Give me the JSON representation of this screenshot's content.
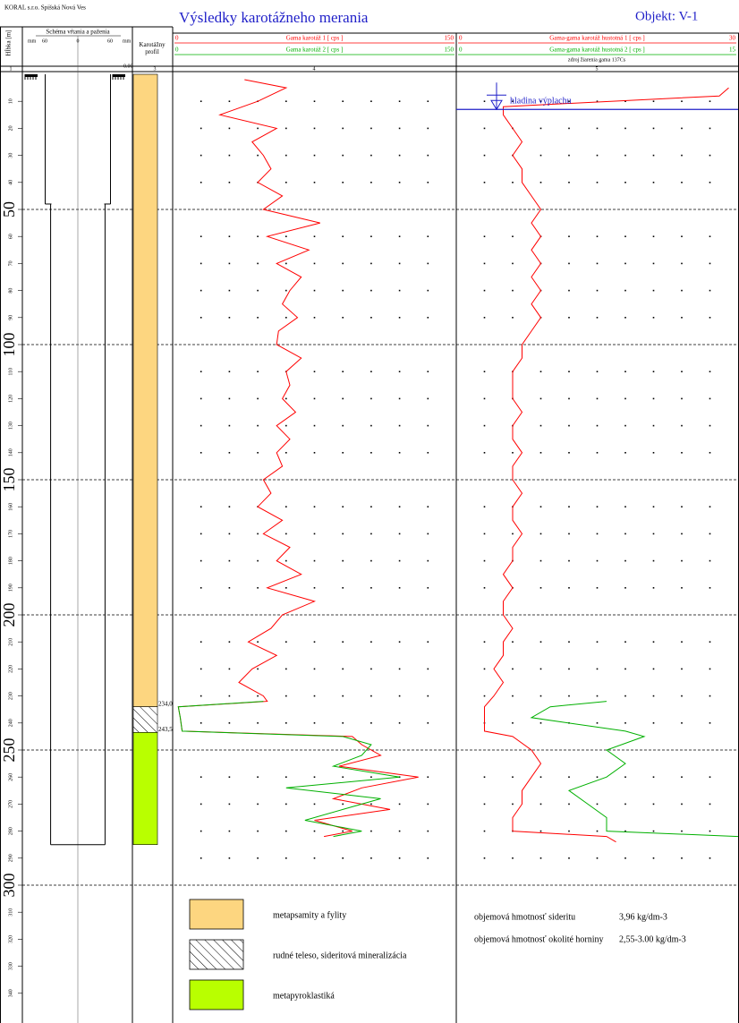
{
  "header": {
    "company": "KORAL s.r.o.  Spišská Nová Ves",
    "title": "Výsledky karotážneho merania",
    "object": "Objekt: V-1"
  },
  "chart_data": {
    "type": "well-log",
    "ylabel": "Hĺbka [m]",
    "ylim": [
      0,
      350
    ],
    "yticks": [
      10,
      20,
      30,
      40,
      50,
      60,
      70,
      80,
      90,
      100,
      110,
      120,
      130,
      140,
      150,
      160,
      170,
      180,
      190,
      200,
      210,
      220,
      230,
      240,
      250,
      260,
      270,
      280,
      290,
      300,
      310,
      320,
      330,
      340
    ],
    "major_ticks": [
      50,
      100,
      150,
      200,
      250,
      300
    ],
    "grid": true,
    "column_numbers": [
      "1",
      "3",
      "4",
      "5"
    ],
    "schema": {
      "title": "Schéma vŕtania a paženia",
      "scale_labels": [
        "mm",
        "60",
        "0",
        "60",
        "mm"
      ],
      "top_label": "0.00",
      "casing": [
        {
          "from": 0,
          "to": 48,
          "radius": 60
        },
        {
          "from": 48,
          "to": 285,
          "radius": 50
        }
      ]
    },
    "profile": {
      "title": "Karotážny profil",
      "layers": [
        {
          "name": "metapsamity a fylity",
          "from": 0,
          "to": 234.0,
          "color": "#fdd680"
        },
        {
          "name": "rudné teleso, sideritová mineralizácia",
          "from": 234.0,
          "to": 243.5,
          "color": "#ffffff",
          "pattern": "hatch",
          "from_label": "234,0"
        },
        {
          "name": "metapyroklastiká",
          "from": 243.5,
          "to": 285,
          "color": "#b9ff00",
          "from_label": "243,5"
        }
      ]
    },
    "tracks": [
      {
        "xticks": [
          15,
          30,
          45,
          60,
          75,
          90,
          105,
          120,
          135
        ],
        "series": [
          {
            "name": "Gama karotáž 1 [ cps ]",
            "color": "#ff0000",
            "xlim": [
              0,
              150
            ],
            "depth": [
              2,
              5,
              10,
              15,
              20,
              25,
              30,
              35,
              40,
              45,
              50,
              55,
              60,
              65,
              70,
              75,
              80,
              85,
              90,
              95,
              100,
              105,
              110,
              115,
              120,
              125,
              130,
              135,
              140,
              145,
              150,
              155,
              160,
              165,
              170,
              175,
              180,
              185,
              190,
              195,
              200,
              205,
              210,
              215,
              220,
              225,
              230,
              232,
              234,
              238,
              243,
              245,
              248,
              252,
              256,
              260,
              264,
              268,
              272,
              276,
              280,
              282
            ],
            "values": [
              38,
              60,
              45,
              25,
              55,
              42,
              48,
              52,
              45,
              58,
              48,
              78,
              50,
              72,
              55,
              68,
              62,
              58,
              66,
              56,
              55,
              68,
              60,
              62,
              58,
              65,
              55,
              62,
              55,
              58,
              48,
              52,
              45,
              58,
              48,
              62,
              55,
              68,
              50,
              75,
              58,
              52,
              40,
              55,
              42,
              35,
              48,
              50,
              3,
              4,
              5,
              95,
              100,
              110,
              88,
              130,
              100,
              85,
              115,
              75,
              95,
              80
            ]
          },
          {
            "name": "Gama karotáž 2 [ cps ]",
            "color": "#00b000",
            "xlim": [
              0,
              150
            ],
            "depth": [
              232,
              234,
              238,
              243,
              245,
              248,
              252,
              256,
              260,
              264,
              268,
              272,
              276,
              280,
              282
            ],
            "values": [
              48,
              3,
              4,
              5,
              90,
              105,
              100,
              85,
              120,
              60,
              110,
              90,
              70,
              100,
              85
            ]
          }
        ]
      },
      {
        "xticks": [
          3,
          6,
          9,
          12,
          15,
          18,
          21,
          24,
          27
        ],
        "note": "zdroj žiarenia gama 137Cs",
        "annotation": {
          "text": "hladina výplachu",
          "depth": 13
        },
        "series": [
          {
            "name": "Gama-gama karotáž hustotná 1 [ cps ]",
            "color": "#ff0000",
            "xlim": [
              0,
              30
            ],
            "depth": [
              5,
              8,
              12,
              15,
              20,
              25,
              30,
              35,
              40,
              45,
              50,
              55,
              60,
              65,
              70,
              75,
              80,
              85,
              90,
              95,
              100,
              105,
              110,
              115,
              120,
              125,
              130,
              135,
              140,
              145,
              150,
              155,
              160,
              165,
              170,
              175,
              180,
              185,
              190,
              195,
              200,
              205,
              210,
              215,
              220,
              225,
              230,
              234,
              238,
              243,
              245,
              250,
              255,
              260,
              265,
              270,
              275,
              280,
              282,
              284
            ],
            "values": [
              29,
              28,
              5,
              5,
              6,
              7,
              6,
              7,
              7,
              8,
              9,
              8,
              9,
              8,
              9,
              8,
              9,
              8,
              9,
              8,
              7,
              7,
              6,
              6,
              6,
              7,
              6,
              6,
              7,
              6,
              6,
              7,
              6,
              6,
              7,
              6,
              6,
              5,
              6,
              5,
              5,
              6,
              5,
              5,
              4,
              5,
              4,
              3,
              3,
              3,
              6,
              8,
              9,
              8,
              7,
              7,
              6,
              6,
              16,
              17
            ]
          },
          {
            "name": "Gama-gama karotáž hustotná 2 [ cps ]",
            "color": "#00b000",
            "xlim": [
              0,
              15
            ],
            "depth": [
              232,
              234,
              238,
              243,
              245,
              250,
              255,
              260,
              265,
              270,
              275,
              280,
              282
            ],
            "values": [
              8,
              5,
              4,
              9,
              10,
              8,
              9,
              8,
              6,
              7,
              8,
              8,
              15
            ]
          }
        ]
      }
    ]
  },
  "notes": [
    {
      "label": "objemová hmotnosť sideritu",
      "value": "3,96 kg/dm-3"
    },
    {
      "label": "objemová hmotnosť okolité horniny",
      "value": "2,55-3.00 kg/dm-3"
    }
  ]
}
